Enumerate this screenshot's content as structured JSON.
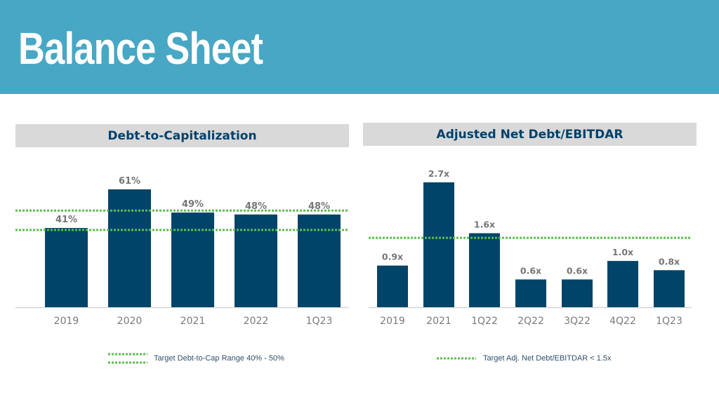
{
  "page": {
    "title": "Balance Sheet"
  },
  "colors": {
    "header_bg": "#48a7c4",
    "panel_title_bg": "#d9d9d9",
    "navy": "#00416b",
    "bar": "#004469",
    "value_text": "#767676",
    "tick_text": "#7a7a7a",
    "target_line": "#5cbc4f",
    "axis": "#d4d4d4",
    "legend_text": "#2e4f6e"
  },
  "chart_data": [
    {
      "type": "bar",
      "title": "Debt-to-Capitalization",
      "categories": [
        "2019",
        "2020",
        "2021",
        "2022",
        "1Q23"
      ],
      "values": [
        41,
        61,
        49,
        48,
        48
      ],
      "value_labels": [
        "41%",
        "61%",
        "49%",
        "48%",
        "48%"
      ],
      "ylim": [
        0,
        61
      ],
      "target_lines": [
        50,
        40
      ],
      "legend": "Target Debt-to-Cap Range 40% - 50%",
      "xlabel": "",
      "ylabel": "",
      "grid": false
    },
    {
      "type": "bar",
      "title": "Adjusted Net Debt/EBITDAR",
      "categories": [
        "2019",
        "2021",
        "1Q22",
        "2Q22",
        "3Q22",
        "4Q22",
        "1Q23"
      ],
      "values": [
        0.9,
        2.7,
        1.6,
        0.6,
        0.6,
        1.0,
        0.8
      ],
      "value_labels": [
        "0.9x",
        "2.7x",
        "1.6x",
        "0.6x",
        "0.6x",
        "1.0x",
        "0.8x"
      ],
      "ylim": [
        0,
        2.7
      ],
      "target_lines": [
        1.5
      ],
      "legend": "Target Adj. Net Debt/EBITDAR < 1.5x",
      "xlabel": "",
      "ylabel": "",
      "grid": false
    }
  ]
}
